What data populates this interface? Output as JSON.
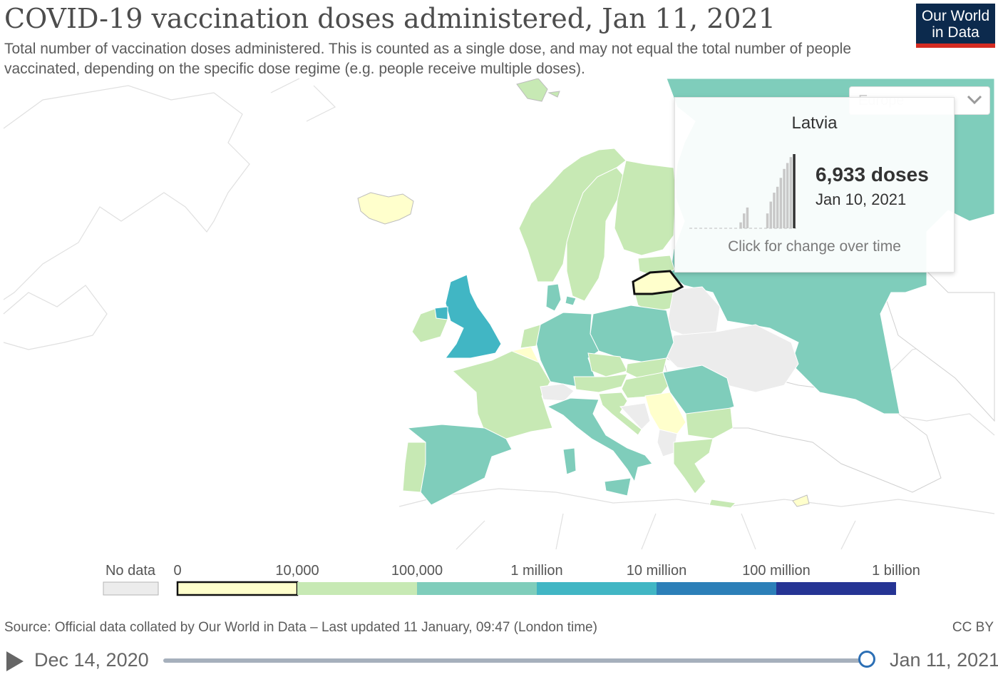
{
  "header": {
    "title": "COVID-19 vaccination doses administered, Jan 11, 2021",
    "subtitle": "Total number of vaccination doses administered. This is counted as a single dose, and may not equal the total number of people vaccinated, depending on the specific dose regime (e.g. people receive multiple doses).",
    "logo_line1": "Our World",
    "logo_line2": "in Data"
  },
  "region_select": {
    "value": "Europe"
  },
  "tooltip": {
    "country": "Latvia",
    "value": "6,933 doses",
    "date": "Jan 10, 2021",
    "hint": "Click for change over time",
    "sparkline": [
      0,
      0,
      0,
      0,
      0,
      0,
      0,
      0,
      0,
      0,
      0,
      0,
      0,
      0,
      0,
      10,
      25,
      35,
      0,
      0,
      0,
      0,
      0,
      25,
      45,
      60,
      70,
      85,
      100,
      110,
      120,
      125
    ]
  },
  "legend": {
    "no_data_label": "No data",
    "bins": [
      "0",
      "10,000",
      "100,000",
      "1 million",
      "10 million",
      "100 million",
      "1 billion"
    ],
    "colors": [
      "#ffffcc",
      "#c7e9b4",
      "#7fcdbb",
      "#41b6c4",
      "#2c7fb8",
      "#253494"
    ],
    "no_data_color": "#ececec"
  },
  "colors": {
    "highlight_border": "#111111",
    "land_empty": "#ffffff",
    "land_border": "#d4d4d4",
    "no_data": "#e6e6e6"
  },
  "source": {
    "text": "Source: Official data collated by Our World in Data – Last updated 11 January, 09:47 (London time)",
    "license": "CC BY"
  },
  "timeline": {
    "start_date": "Dec 14, 2020",
    "end_date": "Jan 11, 2021",
    "position": 1.0
  }
}
